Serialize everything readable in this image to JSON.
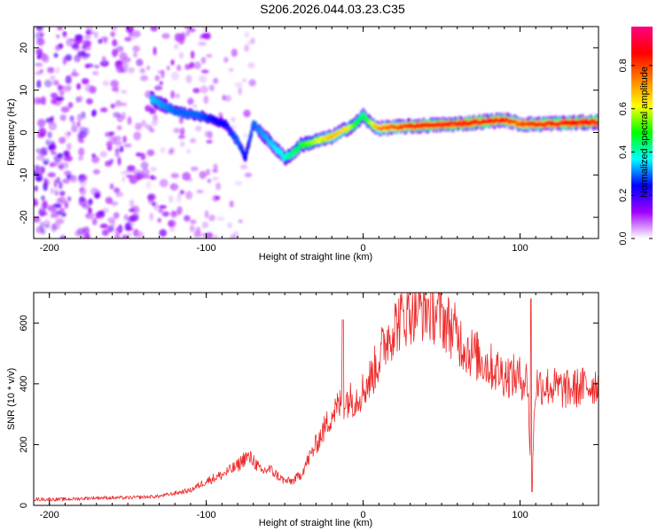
{
  "title": "S206.2026.044.03.23.C35",
  "chart_data": [
    {
      "type": "heatmap",
      "xlabel": "Height of straight line (km)",
      "ylabel": "Frequency (Hz)",
      "xlim": [
        -210,
        150
      ],
      "ylim": [
        -25,
        25
      ],
      "xticks": [
        -200,
        -100,
        0,
        100
      ],
      "xtick_labels": [
        "-200",
        "-100",
        "0",
        "100"
      ],
      "yticks": [
        -20,
        -10,
        0,
        10,
        20
      ],
      "ytick_labels": [
        "-20",
        "-10",
        "0",
        "10",
        "20"
      ],
      "colorbar": {
        "label": "Normalized spectral amplitude",
        "range": [
          0,
          0.98
        ],
        "ticks": [
          0.0,
          0.2,
          0.4,
          0.6,
          0.8
        ],
        "tick_labels": [
          "0.0",
          "0.2",
          "0.4",
          "0.6",
          "0.8"
        ],
        "stops": [
          "#ffffff",
          "#a000ff",
          "#0000ff",
          "#00ffff",
          "#00ff00",
          "#ffff00",
          "#ff8000",
          "#ff0000",
          "#ff0080"
        ]
      },
      "ridge": {
        "x": [
          -135,
          -120,
          -105,
          -95,
          -88,
          -80,
          -75,
          -70,
          -60,
          -50,
          -45,
          -40,
          -30,
          -20,
          -10,
          -5,
          0,
          5,
          10,
          30,
          60,
          90,
          100,
          110,
          150
        ],
        "y": [
          8,
          5,
          4,
          3,
          2,
          -2,
          -6,
          2,
          -2,
          -6,
          -5,
          -3,
          -2,
          -1,
          1,
          2,
          4,
          2,
          1,
          1.5,
          2,
          3,
          2,
          2,
          2.5
        ],
        "amplitude": [
          0.35,
          0.3,
          0.3,
          0.25,
          0.25,
          0.3,
          0.25,
          0.3,
          0.35,
          0.4,
          0.45,
          0.5,
          0.6,
          0.7,
          0.65,
          0.5,
          0.45,
          0.6,
          0.75,
          0.85,
          0.9,
          0.85,
          0.8,
          0.85,
          0.9
        ]
      },
      "background_region": {
        "x": [
          -210,
          -90
        ],
        "y": [
          -25,
          25
        ],
        "amplitude": 0.12
      }
    },
    {
      "type": "line",
      "xlabel": "Height of straight line (km)",
      "ylabel": "SNR (10 * v/v)",
      "xlim": [
        -210,
        150
      ],
      "ylim": [
        0,
        700
      ],
      "xticks": [
        -200,
        -100,
        0,
        100
      ],
      "xtick_labels": [
        "-200",
        "-100",
        "0",
        "100"
      ],
      "yticks": [
        0,
        200,
        400,
        600
      ],
      "ytick_labels": [
        "0",
        "200",
        "400",
        "600"
      ],
      "color": "#ee2a2a",
      "series": [
        {
          "name": "SNR",
          "x": [
            -210,
            -190,
            -170,
            -150,
            -130,
            -110,
            -100,
            -90,
            -80,
            -75,
            -70,
            -65,
            -60,
            -55,
            -50,
            -45,
            -40,
            -35,
            -30,
            -25,
            -20,
            -15,
            -10,
            -5,
            0,
            5,
            10,
            15,
            20,
            25,
            30,
            35,
            40,
            45,
            50,
            55,
            60,
            65,
            70,
            80,
            90,
            100,
            105,
            107,
            110,
            120,
            130,
            140,
            150
          ],
          "y": [
            20,
            20,
            25,
            25,
            30,
            50,
            80,
            100,
            130,
            160,
            150,
            110,
            120,
            100,
            80,
            80,
            100,
            150,
            200,
            250,
            300,
            330,
            350,
            350,
            380,
            420,
            480,
            550,
            590,
            620,
            640,
            650,
            650,
            640,
            620,
            590,
            560,
            520,
            500,
            460,
            430,
            420,
            410,
            45,
            400,
            390,
            380,
            390,
            400
          ]
        }
      ],
      "annotations": [
        {
          "x": -13,
          "y": 610,
          "label": ""
        },
        {
          "x": 107,
          "y": 680,
          "label": ""
        }
      ]
    }
  ]
}
